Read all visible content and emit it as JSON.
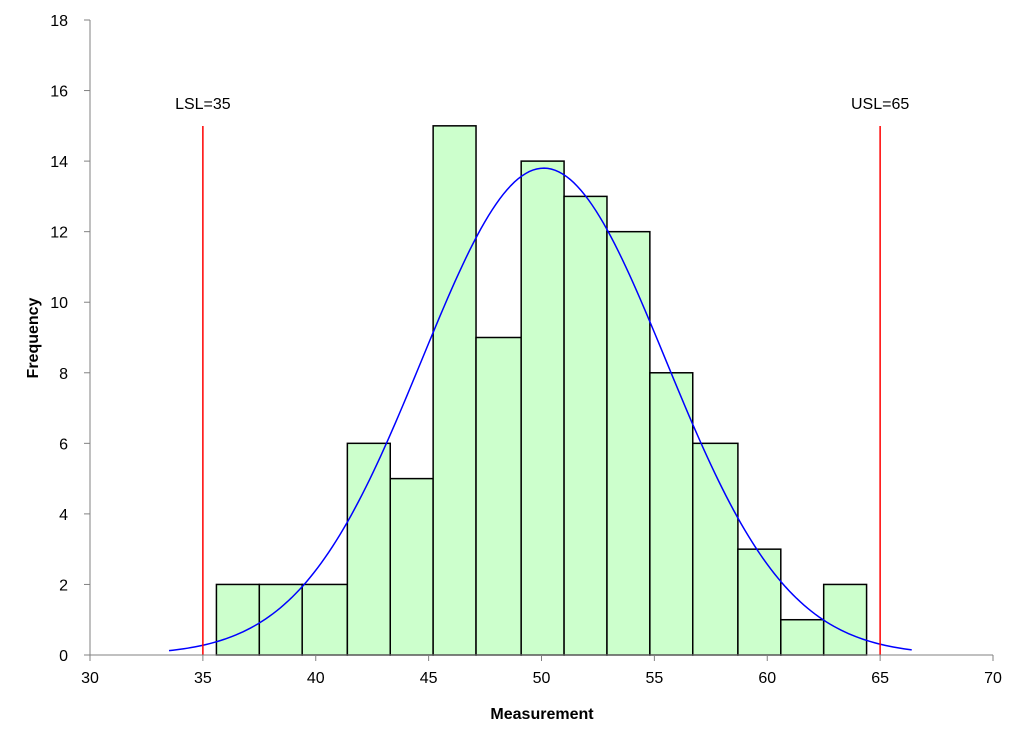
{
  "chart_data": {
    "type": "bar",
    "title": "",
    "xlabel": "Measurement",
    "ylabel": "Frequency",
    "xlim": [
      30,
      70
    ],
    "ylim": [
      0,
      18
    ],
    "xticks": [
      30,
      35,
      40,
      45,
      50,
      55,
      60,
      65,
      70
    ],
    "yticks": [
      0,
      2,
      4,
      6,
      8,
      10,
      12,
      14,
      16,
      18
    ],
    "grid": false,
    "bins": [
      {
        "start": 35.6,
        "end": 37.5,
        "count": 2
      },
      {
        "start": 37.5,
        "end": 39.4,
        "count": 2
      },
      {
        "start": 39.4,
        "end": 41.4,
        "count": 2
      },
      {
        "start": 41.4,
        "end": 43.3,
        "count": 6
      },
      {
        "start": 43.3,
        "end": 45.2,
        "count": 5
      },
      {
        "start": 45.2,
        "end": 47.1,
        "count": 15
      },
      {
        "start": 47.1,
        "end": 49.1,
        "count": 9
      },
      {
        "start": 49.1,
        "end": 51.0,
        "count": 14
      },
      {
        "start": 51.0,
        "end": 52.9,
        "count": 13
      },
      {
        "start": 52.9,
        "end": 54.8,
        "count": 12
      },
      {
        "start": 54.8,
        "end": 56.7,
        "count": 8
      },
      {
        "start": 56.7,
        "end": 58.7,
        "count": 6
      },
      {
        "start": 58.7,
        "end": 60.6,
        "count": 3
      },
      {
        "start": 60.6,
        "end": 62.5,
        "count": 1
      },
      {
        "start": 62.5,
        "end": 64.4,
        "count": 2
      }
    ],
    "normal_curve": {
      "mean": 50.1,
      "sd": 5.4,
      "peak": 13.8,
      "x_range": [
        33.5,
        66.4
      ]
    },
    "spec_limits": [
      {
        "label": "LSL=35",
        "value": 35
      },
      {
        "label": "USL=65",
        "value": 65
      }
    ],
    "colors": {
      "bar_fill": "#ccffcc",
      "bar_stroke": "#000000",
      "curve": "#0000ff",
      "limit": "#ff0000",
      "axis": "#808080"
    }
  }
}
